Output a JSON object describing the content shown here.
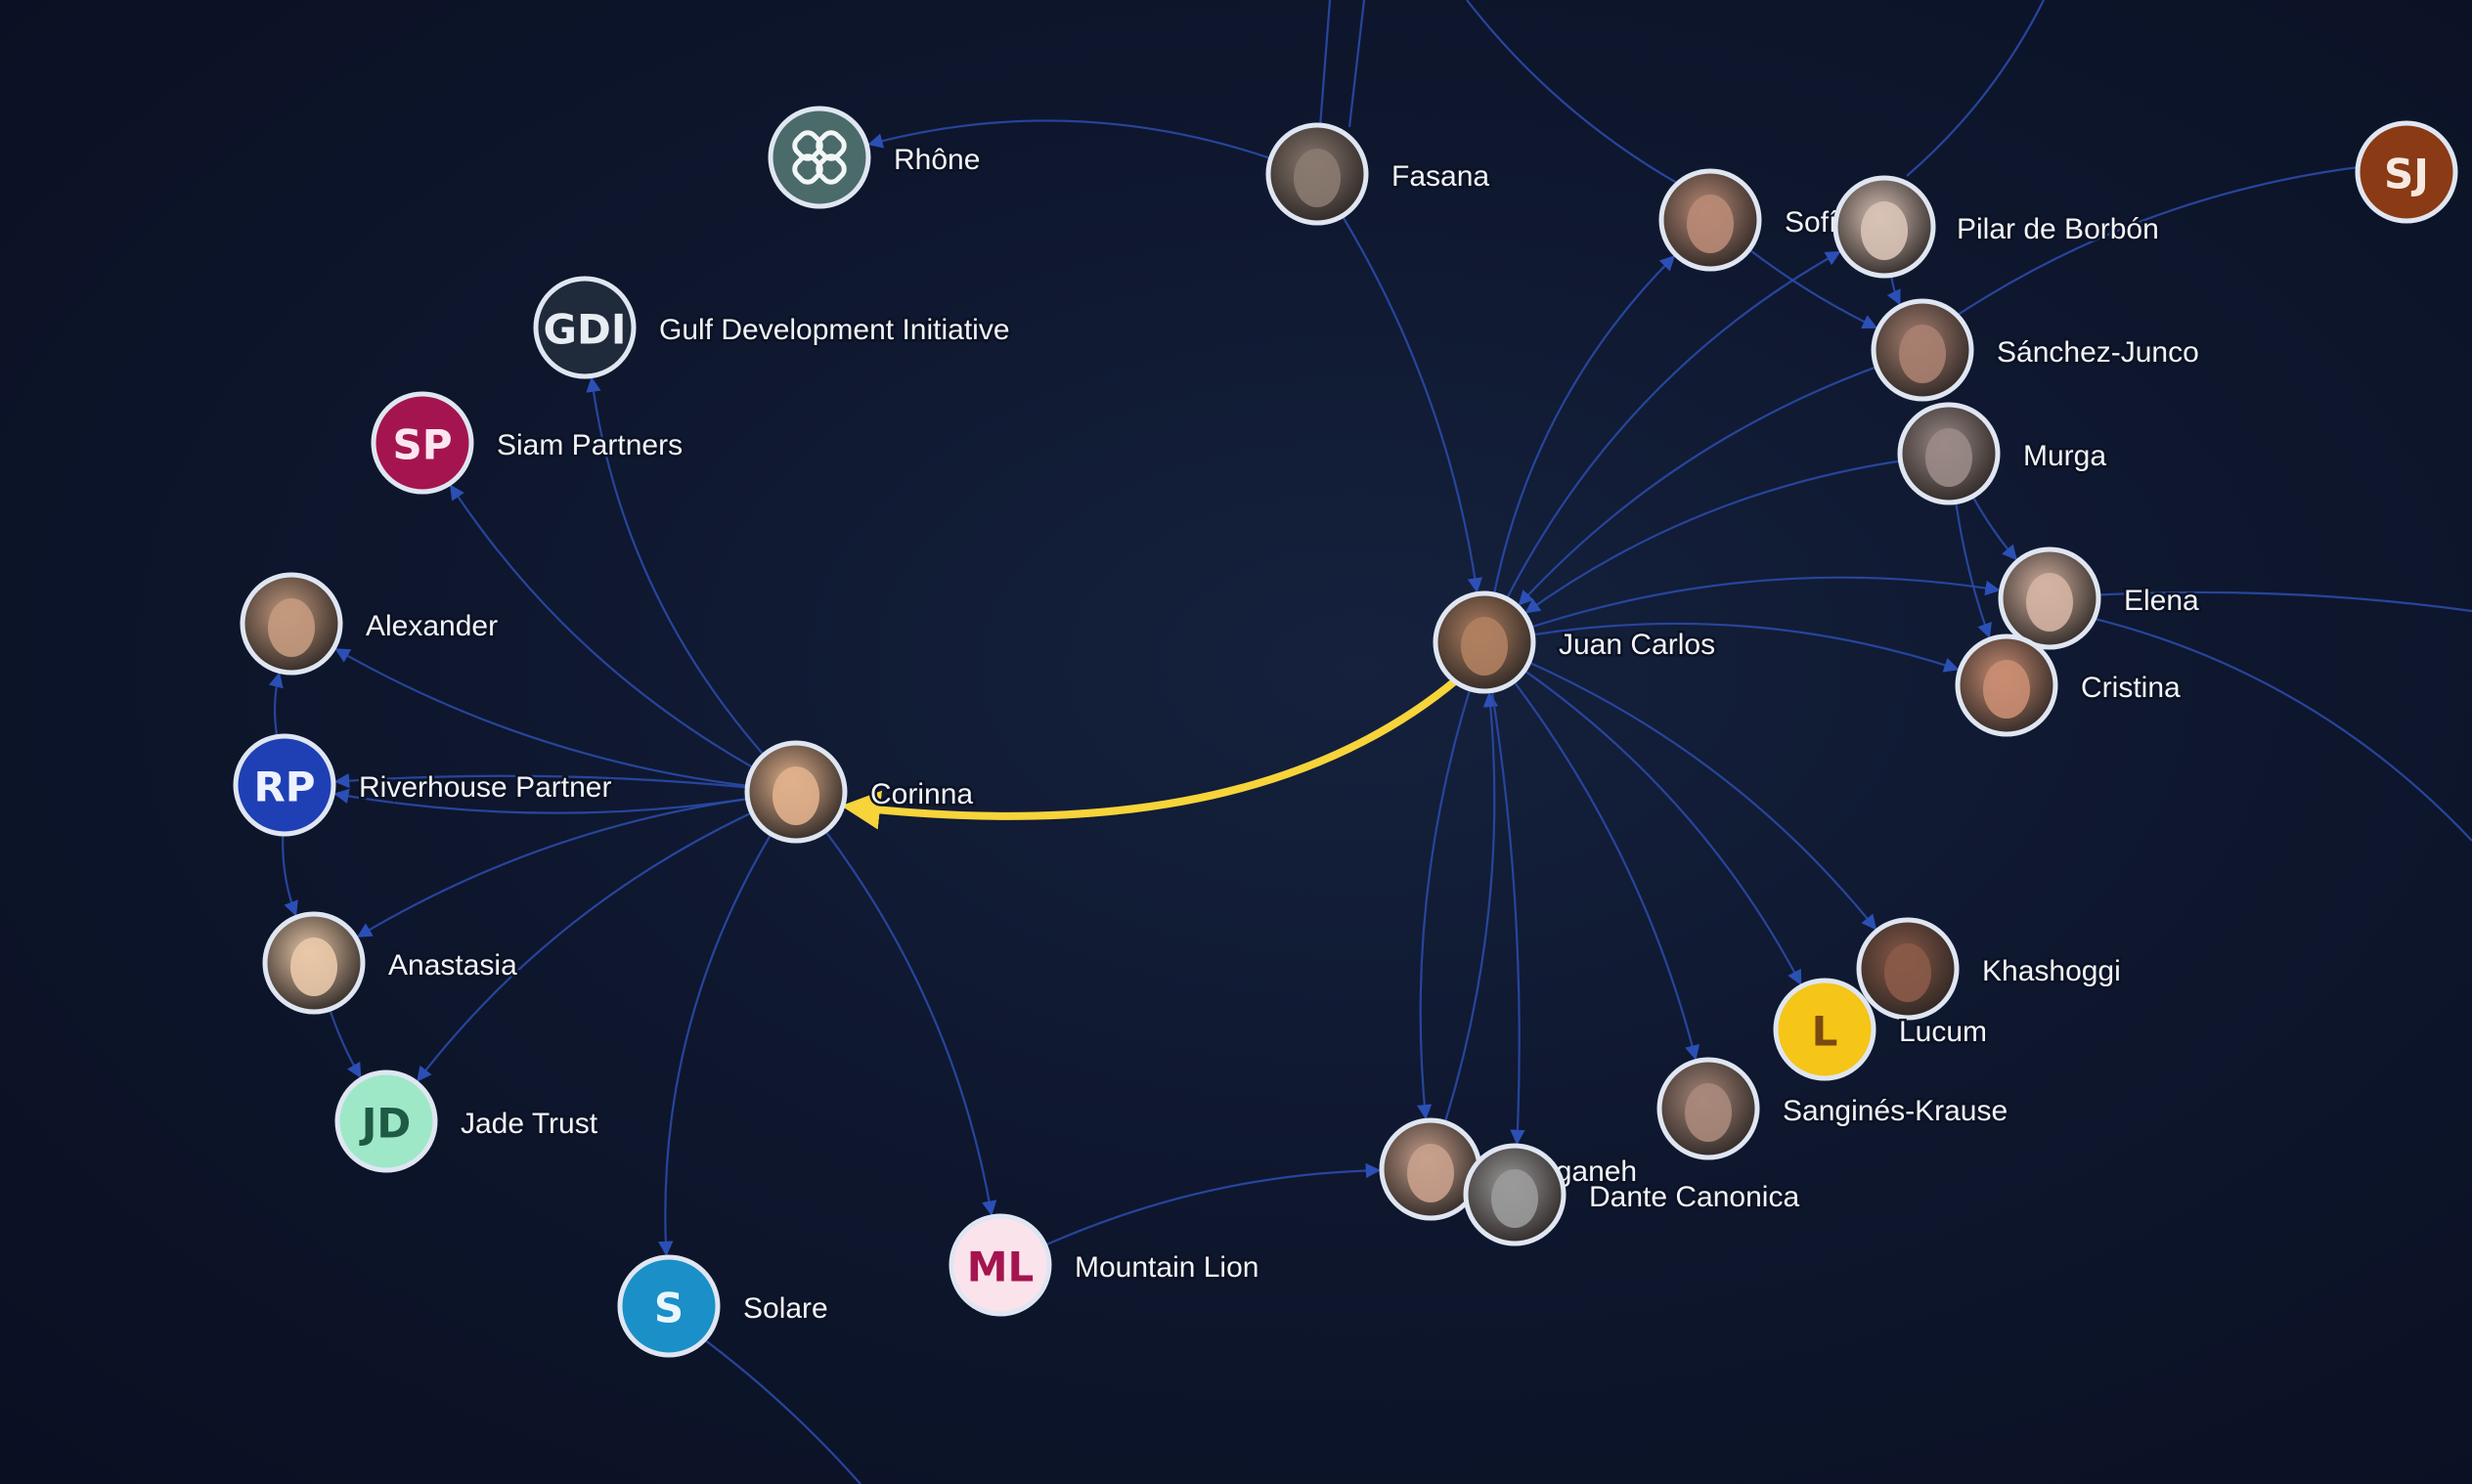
{
  "graph": {
    "highlight_edge": {
      "from": "Juan Carlos",
      "to": "Corinna",
      "color": "#f7d43a"
    },
    "nodes": [
      {
        "id": "rhone",
        "label": "Rhône",
        "kind": "logo",
        "icon": "knot-logo-icon",
        "color": "#4a6b6a"
      },
      {
        "id": "fasana",
        "label": "Fasana",
        "kind": "photo",
        "color": "#8a7a70"
      },
      {
        "id": "sofia",
        "label": "Sofía",
        "kind": "photo",
        "color": "#b88a76"
      },
      {
        "id": "pilar",
        "label": "Pilar de Borbón",
        "kind": "photo",
        "color": "#d8c2b6"
      },
      {
        "id": "sj",
        "label": "",
        "kind": "initials",
        "initials": "SJ",
        "color": "#8a3a14",
        "text_color": "#f6e9e0"
      },
      {
        "id": "gdi",
        "label": "Gulf Development Initiative",
        "kind": "initials",
        "initials": "GDI",
        "color": "#1f2a3a",
        "text_color": "#e8edf3"
      },
      {
        "id": "sanchez",
        "label": "Sánchez-Junco",
        "kind": "photo",
        "color": "#a88070"
      },
      {
        "id": "sp",
        "label": "Siam Partners",
        "kind": "initials",
        "initials": "SP",
        "color": "#a4154f",
        "text_color": "#fbe6ef"
      },
      {
        "id": "murga",
        "label": "Murga",
        "kind": "photo",
        "color": "#9a8a86"
      },
      {
        "id": "alexander",
        "label": "Alexander",
        "kind": "photo",
        "color": "#c49a7e"
      },
      {
        "id": "juancarlos",
        "label": "Juan Carlos",
        "kind": "photo",
        "color": "#b08060"
      },
      {
        "id": "elena",
        "label": "Elena",
        "kind": "photo",
        "color": "#d4b3a2"
      },
      {
        "id": "cristina",
        "label": "Cristina",
        "kind": "photo",
        "color": "#c98d72"
      },
      {
        "id": "rp",
        "label": "Riverhouse Partner",
        "kind": "initials",
        "initials": "RP",
        "color": "#1f3fb5",
        "text_color": "#eef2ff"
      },
      {
        "id": "corinna",
        "label": "Corinna",
        "kind": "photo",
        "color": "#e0b08c"
      },
      {
        "id": "anastasia",
        "label": "Anastasia",
        "kind": "photo",
        "color": "#e9c8a8"
      },
      {
        "id": "khashoggi",
        "label": "Khashoggi",
        "kind": "photo",
        "color": "#8a5a48"
      },
      {
        "id": "lucum",
        "label": "Lucum",
        "kind": "initials",
        "initials": "L",
        "color": "#f5c518",
        "text_color": "#7a4a10"
      },
      {
        "id": "jd",
        "label": "Jade Trust",
        "kind": "initials",
        "initials": "JD",
        "color": "#9ee8c8",
        "text_color": "#1e5a44"
      },
      {
        "id": "sangines",
        "label": "Sanginés-Krause",
        "kind": "photo",
        "color": "#a8887a"
      },
      {
        "id": "zanganeh",
        "label": "Zanganeh",
        "kind": "photo",
        "color": "#c8a08c"
      },
      {
        "id": "dante",
        "label": "Dante Canonica",
        "kind": "photo",
        "color": "#9a9a9a"
      },
      {
        "id": "ml",
        "label": "Mountain Lion",
        "kind": "initials",
        "initials": "ML",
        "color": "#fbe3ec",
        "text_color": "#a4154f"
      },
      {
        "id": "solare",
        "label": "Solare",
        "kind": "initials",
        "initials": "S",
        "color": "#1a8fc8",
        "text_color": "#eaf6fc"
      }
    ]
  }
}
